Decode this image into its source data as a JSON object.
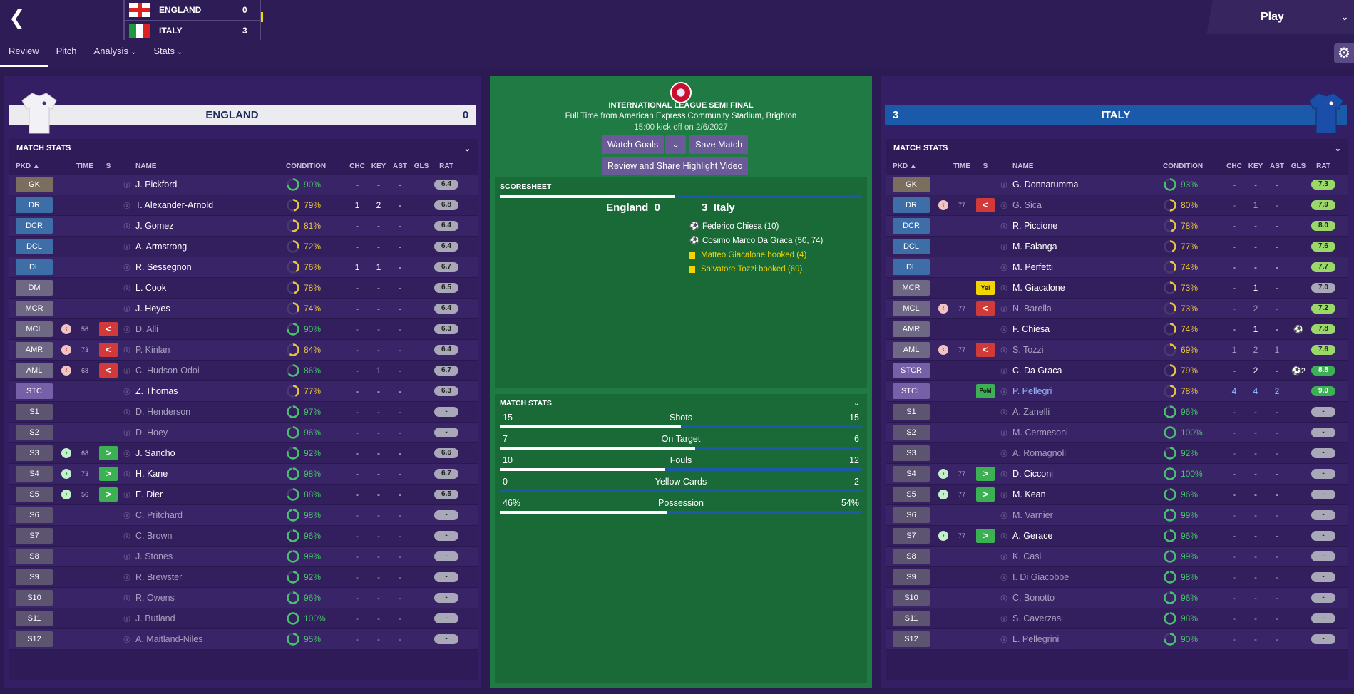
{
  "header": {
    "back_icon": "chevron-left-icon",
    "score": {
      "home": {
        "name": "ENGLAND",
        "goals": "0"
      },
      "away": {
        "name": "ITALY",
        "goals": "3"
      }
    },
    "play_label": "Play",
    "tabs": [
      {
        "label": "Review"
      },
      {
        "label": "Pitch"
      },
      {
        "label": "Analysis"
      },
      {
        "label": "Stats"
      }
    ]
  },
  "colors": {
    "accent_yellow": "#f2d400",
    "home_bar": "#ffffff",
    "away_bar": "#1a5aa8",
    "panel": "#351f64",
    "center_green": "#1f7a43"
  },
  "center": {
    "competition": "INTERNATIONAL LEAGUE SEMI FINAL",
    "venue": "Full Time from American Express Community Stadium, Brighton",
    "kickoff": "15:00 kick off on 2/6/2027",
    "watch_goals": "Watch Goals",
    "save_match": "Save Match",
    "highlight": "Review and Share Highlight Video",
    "scoresheet": {
      "title": "SCORESHEET",
      "home": "England",
      "home_goals": "0",
      "away_goals": "3",
      "away": "Italy",
      "events": [
        {
          "type": "goal",
          "text": "Federico Chiesa (10)"
        },
        {
          "type": "goal",
          "text": "Cosimo Marco Da Graca (50, 74)"
        },
        {
          "type": "yellow",
          "text": "Matteo Giacalone booked (4)"
        },
        {
          "type": "yellow",
          "text": "Salvatore Tozzi booked (69)"
        }
      ]
    },
    "match_stats": {
      "title": "MATCH STATS",
      "rows": [
        {
          "label": "Shots",
          "home": "15",
          "away": "15",
          "hv": 15,
          "av": 15
        },
        {
          "label": "On Target",
          "home": "7",
          "away": "6",
          "hv": 7,
          "av": 6
        },
        {
          "label": "Fouls",
          "home": "10",
          "away": "12",
          "hv": 10,
          "av": 12
        },
        {
          "label": "Yellow Cards",
          "home": "0",
          "away": "2",
          "hv": 0,
          "av": 2
        },
        {
          "label": "Possession",
          "home": "46%",
          "away": "54%",
          "hv": 46,
          "av": 54
        }
      ]
    }
  },
  "columns": {
    "pkd": "PKD",
    "time": "TIME",
    "s": "S",
    "name": "NAME",
    "condition": "CONDITION",
    "chc": "CHC",
    "key": "KEY",
    "ast": "AST",
    "gls": "GLS",
    "rat": "RAT"
  },
  "england": {
    "team_name": "ENGLAND",
    "goals": "0",
    "section_title": "MATCH STATS",
    "players": [
      {
        "pos": "GK",
        "pc": "gk",
        "name": "J. Pickford",
        "cond": "90%",
        "cv": 90,
        "chc": "-",
        "key": "-",
        "ast": "-",
        "gls": "",
        "rat": "6.4",
        "rc": "grey"
      },
      {
        "pos": "DR",
        "pc": "def",
        "name": "T. Alexander-Arnold",
        "cond": "79%",
        "cv": 79,
        "chc": "1",
        "key": "2",
        "ast": "-",
        "gls": "",
        "rat": "6.8",
        "rc": "grey"
      },
      {
        "pos": "DCR",
        "pc": "def",
        "name": "J. Gomez",
        "cond": "81%",
        "cv": 81,
        "chc": "-",
        "key": "-",
        "ast": "-",
        "gls": "",
        "rat": "6.4",
        "rc": "grey"
      },
      {
        "pos": "DCL",
        "pc": "def",
        "name": "A. Armstrong",
        "cond": "72%",
        "cv": 72,
        "chc": "-",
        "key": "-",
        "ast": "-",
        "gls": "",
        "rat": "6.4",
        "rc": "grey"
      },
      {
        "pos": "DL",
        "pc": "def",
        "name": "R. Sessegnon",
        "cond": "76%",
        "cv": 76,
        "chc": "1",
        "key": "1",
        "ast": "-",
        "gls": "",
        "rat": "6.7",
        "rc": "grey"
      },
      {
        "pos": "DM",
        "pc": "mid",
        "name": "L. Cook",
        "cond": "78%",
        "cv": 78,
        "chc": "-",
        "key": "-",
        "ast": "-",
        "gls": "",
        "rat": "6.5",
        "rc": "grey"
      },
      {
        "pos": "MCR",
        "pc": "mid",
        "name": "J. Heyes",
        "cond": "74%",
        "cv": 74,
        "chc": "-",
        "key": "-",
        "ast": "-",
        "gls": "",
        "rat": "6.4",
        "rc": "grey"
      },
      {
        "pos": "MCL",
        "pc": "mid",
        "sub": "off",
        "time": "56",
        "name": "D. Alli",
        "cond": "90%",
        "cv": 90,
        "chc": "-",
        "key": "-",
        "ast": "-",
        "gls": "",
        "rat": "6.3",
        "rc": "grey",
        "faded": true
      },
      {
        "pos": "AMR",
        "pc": "mid",
        "sub": "off",
        "time": "73",
        "name": "P. Kinlan",
        "cond": "84%",
        "cv": 84,
        "chc": "-",
        "key": "-",
        "ast": "-",
        "gls": "",
        "rat": "6.4",
        "rc": "grey",
        "faded": true
      },
      {
        "pos": "AML",
        "pc": "mid",
        "sub": "off",
        "time": "68",
        "name": "C. Hudson-Odoi",
        "cond": "86%",
        "cv": 86,
        "chc": "-",
        "key": "1",
        "ast": "-",
        "gls": "",
        "rat": "6.7",
        "rc": "grey",
        "faded": true
      },
      {
        "pos": "STC",
        "pc": "att",
        "name": "Z. Thomas",
        "cond": "77%",
        "cv": 77,
        "chc": "-",
        "key": "-",
        "ast": "-",
        "gls": "",
        "rat": "6.3",
        "rc": "grey"
      },
      {
        "pos": "S1",
        "pc": "sub",
        "name": "D. Henderson",
        "cond": "97%",
        "cv": 97,
        "chc": "-",
        "key": "-",
        "ast": "-",
        "gls": "",
        "rat": "-",
        "rc": "grey",
        "faded": true
      },
      {
        "pos": "S2",
        "pc": "sub",
        "name": "D. Hoey",
        "cond": "96%",
        "cv": 96,
        "chc": "-",
        "key": "-",
        "ast": "-",
        "gls": "",
        "rat": "-",
        "rc": "grey",
        "faded": true
      },
      {
        "pos": "S3",
        "pc": "sub",
        "sub": "on",
        "time": "68",
        "name": "J. Sancho",
        "cond": "92%",
        "cv": 92,
        "chc": "-",
        "key": "-",
        "ast": "-",
        "gls": "",
        "rat": "6.6",
        "rc": "grey"
      },
      {
        "pos": "S4",
        "pc": "sub",
        "sub": "on",
        "time": "73",
        "name": "H. Kane",
        "cond": "98%",
        "cv": 98,
        "chc": "-",
        "key": "-",
        "ast": "-",
        "gls": "",
        "rat": "6.7",
        "rc": "grey"
      },
      {
        "pos": "S5",
        "pc": "sub",
        "sub": "on",
        "time": "56",
        "name": "E. Dier",
        "cond": "88%",
        "cv": 88,
        "chc": "-",
        "key": "-",
        "ast": "-",
        "gls": "",
        "rat": "6.5",
        "rc": "grey"
      },
      {
        "pos": "S6",
        "pc": "sub",
        "name": "C. Pritchard",
        "cond": "98%",
        "cv": 98,
        "chc": "-",
        "key": "-",
        "ast": "-",
        "gls": "",
        "rat": "-",
        "rc": "grey",
        "faded": true
      },
      {
        "pos": "S7",
        "pc": "sub",
        "name": "C. Brown",
        "cond": "96%",
        "cv": 96,
        "chc": "-",
        "key": "-",
        "ast": "-",
        "gls": "",
        "rat": "-",
        "rc": "grey",
        "faded": true
      },
      {
        "pos": "S8",
        "pc": "sub",
        "name": "J. Stones",
        "cond": "99%",
        "cv": 99,
        "chc": "-",
        "key": "-",
        "ast": "-",
        "gls": "",
        "rat": "-",
        "rc": "grey",
        "faded": true
      },
      {
        "pos": "S9",
        "pc": "sub",
        "name": "R. Brewster",
        "cond": "92%",
        "cv": 92,
        "chc": "-",
        "key": "-",
        "ast": "-",
        "gls": "",
        "rat": "-",
        "rc": "grey",
        "faded": true
      },
      {
        "pos": "S10",
        "pc": "sub",
        "name": "R. Owens",
        "cond": "96%",
        "cv": 96,
        "chc": "-",
        "key": "-",
        "ast": "-",
        "gls": "",
        "rat": "-",
        "rc": "grey",
        "faded": true
      },
      {
        "pos": "S11",
        "pc": "sub",
        "name": "J. Butland",
        "cond": "100%",
        "cv": 100,
        "chc": "-",
        "key": "-",
        "ast": "-",
        "gls": "",
        "rat": "-",
        "rc": "grey",
        "faded": true
      },
      {
        "pos": "S12",
        "pc": "sub",
        "name": "A. Maitland-Niles",
        "cond": "95%",
        "cv": 95,
        "chc": "-",
        "key": "-",
        "ast": "-",
        "gls": "",
        "rat": "-",
        "rc": "grey",
        "faded": true
      }
    ]
  },
  "italy": {
    "team_name": "ITALY",
    "goals": "3",
    "section_title": "MATCH STATS",
    "players": [
      {
        "pos": "GK",
        "pc": "gk",
        "name": "G. Donnarumma",
        "cond": "93%",
        "cv": 93,
        "chc": "-",
        "key": "-",
        "ast": "-",
        "gls": "",
        "rat": "7.3",
        "rc": "lgreen"
      },
      {
        "pos": "DR",
        "pc": "def",
        "sub": "off",
        "time": "77",
        "name": "G. Sica",
        "cond": "80%",
        "cv": 80,
        "chc": "-",
        "key": "1",
        "ast": "-",
        "gls": "",
        "rat": "7.9",
        "rc": "lgreen",
        "faded": true
      },
      {
        "pos": "DCR",
        "pc": "def",
        "name": "R. Piccione",
        "cond": "78%",
        "cv": 78,
        "chc": "-",
        "key": "-",
        "ast": "-",
        "gls": "",
        "rat": "8.0",
        "rc": "lgreen"
      },
      {
        "pos": "DCL",
        "pc": "def",
        "name": "M. Falanga",
        "cond": "77%",
        "cv": 77,
        "chc": "-",
        "key": "-",
        "ast": "-",
        "gls": "",
        "rat": "7.6",
        "rc": "lgreen"
      },
      {
        "pos": "DL",
        "pc": "def",
        "name": "M. Perfetti",
        "cond": "74%",
        "cv": 74,
        "chc": "-",
        "key": "-",
        "ast": "-",
        "gls": "",
        "rat": "7.7",
        "rc": "lgreen"
      },
      {
        "pos": "MCR",
        "pc": "mid",
        "card": "Yel",
        "name": "M. Giacalone",
        "cond": "73%",
        "cv": 73,
        "chc": "-",
        "key": "1",
        "ast": "-",
        "gls": "",
        "rat": "7.0",
        "rc": "grey"
      },
      {
        "pos": "MCL",
        "pc": "mid",
        "sub": "off",
        "time": "77",
        "name": "N. Barella",
        "cond": "73%",
        "cv": 73,
        "chc": "-",
        "key": "2",
        "ast": "-",
        "gls": "",
        "rat": "7.2",
        "rc": "lgreen",
        "faded": true
      },
      {
        "pos": "AMR",
        "pc": "mid",
        "name": "F. Chiesa",
        "cond": "74%",
        "cv": 74,
        "chc": "-",
        "key": "1",
        "ast": "-",
        "gls": "⚽",
        "rat": "7.8",
        "rc": "lgreen"
      },
      {
        "pos": "AML",
        "pc": "mid",
        "sub": "off",
        "time": "77",
        "name": "S. Tozzi",
        "cond": "69%",
        "cv": 69,
        "chc": "1",
        "key": "2",
        "ast": "1",
        "gls": "",
        "rat": "7.6",
        "rc": "lgreen",
        "faded": true
      },
      {
        "pos": "STCR",
        "pc": "att",
        "name": "C. Da Graca",
        "cond": "79%",
        "cv": 79,
        "chc": "-",
        "key": "2",
        "ast": "-",
        "gls": "⚽2",
        "rat": "8.8",
        "rc": "green"
      },
      {
        "pos": "STCL",
        "pc": "att",
        "card": "PoM",
        "name": "P. Pellegri",
        "cond": "78%",
        "cv": 78,
        "chc": "4",
        "key": "4",
        "ast": "2",
        "gls": "",
        "rat": "9.0",
        "rc": "green",
        "pom": true
      },
      {
        "pos": "S1",
        "pc": "sub",
        "name": "A. Zanelli",
        "cond": "96%",
        "cv": 96,
        "chc": "-",
        "key": "-",
        "ast": "-",
        "gls": "",
        "rat": "-",
        "rc": "grey",
        "faded": true
      },
      {
        "pos": "S2",
        "pc": "sub",
        "name": "M. Cermesoni",
        "cond": "100%",
        "cv": 100,
        "chc": "-",
        "key": "-",
        "ast": "-",
        "gls": "",
        "rat": "-",
        "rc": "grey",
        "faded": true
      },
      {
        "pos": "S3",
        "pc": "sub",
        "name": "A. Romagnoli",
        "cond": "92%",
        "cv": 92,
        "chc": "-",
        "key": "-",
        "ast": "-",
        "gls": "",
        "rat": "-",
        "rc": "grey",
        "faded": true
      },
      {
        "pos": "S4",
        "pc": "sub",
        "sub": "on",
        "time": "77",
        "name": "D. Cicconi",
        "cond": "100%",
        "cv": 100,
        "chc": "-",
        "key": "-",
        "ast": "-",
        "gls": "",
        "rat": "-",
        "rc": "grey"
      },
      {
        "pos": "S5",
        "pc": "sub",
        "sub": "on",
        "time": "77",
        "name": "M. Kean",
        "cond": "96%",
        "cv": 96,
        "chc": "-",
        "key": "-",
        "ast": "-",
        "gls": "",
        "rat": "-",
        "rc": "grey"
      },
      {
        "pos": "S6",
        "pc": "sub",
        "name": "M. Varnier",
        "cond": "99%",
        "cv": 99,
        "chc": "-",
        "key": "-",
        "ast": "-",
        "gls": "",
        "rat": "-",
        "rc": "grey",
        "faded": true
      },
      {
        "pos": "S7",
        "pc": "sub",
        "sub": "on",
        "time": "77",
        "name": "A. Gerace",
        "cond": "96%",
        "cv": 96,
        "chc": "-",
        "key": "-",
        "ast": "-",
        "gls": "",
        "rat": "-",
        "rc": "grey"
      },
      {
        "pos": "S8",
        "pc": "sub",
        "name": "K. Casi",
        "cond": "99%",
        "cv": 99,
        "chc": "-",
        "key": "-",
        "ast": "-",
        "gls": "",
        "rat": "-",
        "rc": "grey",
        "faded": true
      },
      {
        "pos": "S9",
        "pc": "sub",
        "name": "I. Di Giacobbe",
        "cond": "98%",
        "cv": 98,
        "chc": "-",
        "key": "-",
        "ast": "-",
        "gls": "",
        "rat": "-",
        "rc": "grey",
        "faded": true
      },
      {
        "pos": "S10",
        "pc": "sub",
        "name": "C. Bonotto",
        "cond": "96%",
        "cv": 96,
        "chc": "-",
        "key": "-",
        "ast": "-",
        "gls": "",
        "rat": "-",
        "rc": "grey",
        "faded": true
      },
      {
        "pos": "S11",
        "pc": "sub",
        "name": "S. Caverzasi",
        "cond": "98%",
        "cv": 98,
        "chc": "-",
        "key": "-",
        "ast": "-",
        "gls": "",
        "rat": "-",
        "rc": "grey",
        "faded": true
      },
      {
        "pos": "S12",
        "pc": "sub",
        "name": "L. Pellegrini",
        "cond": "90%",
        "cv": 90,
        "chc": "-",
        "key": "-",
        "ast": "-",
        "gls": "",
        "rat": "-",
        "rc": "grey",
        "faded": true
      }
    ]
  }
}
